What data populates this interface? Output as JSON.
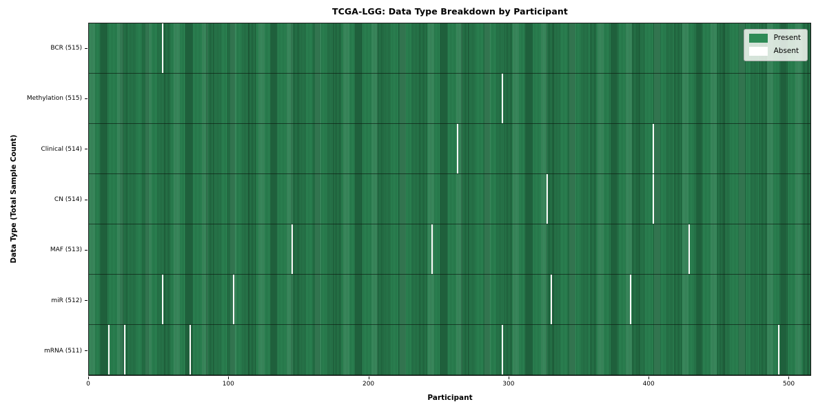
{
  "chart_data": {
    "type": "heatmap",
    "title": "TCGA-LGG: Data Type Breakdown by Participant",
    "xlabel": "Participant",
    "ylabel": "Data Type (Total Sample Count)",
    "x_ticks": [
      0,
      100,
      200,
      300,
      400,
      500
    ],
    "x_range": [
      0,
      516
    ],
    "total_participants": 516,
    "grid": false,
    "legend_position": "upper right",
    "colors": {
      "present": "#2e8b57",
      "present_edge": "#16482c",
      "absent": "#fcfcfa",
      "legend_bg": "#f0f0ee",
      "legend_border": "#a8a8a8"
    },
    "legend_items": [
      {
        "label": "Present",
        "swatch_color": "#2e8b57"
      },
      {
        "label": "Absent",
        "swatch_color": "#ffffff"
      }
    ],
    "rows": [
      {
        "id": "bcr",
        "label": "BCR (515)",
        "data_type": "BCR",
        "present_count": 515,
        "absent_participants": [
          52
        ]
      },
      {
        "id": "methylation",
        "label": "Methylation (515)",
        "data_type": "Methylation",
        "present_count": 515,
        "absent_participants": [
          295
        ]
      },
      {
        "id": "clinical",
        "label": "Clinical (514)",
        "data_type": "Clinical",
        "present_count": 514,
        "absent_participants": [
          263,
          403
        ]
      },
      {
        "id": "cn",
        "label": "CN (514)",
        "data_type": "CN",
        "present_count": 514,
        "absent_participants": [
          327,
          403
        ]
      },
      {
        "id": "maf",
        "label": "MAF (513)",
        "data_type": "MAF",
        "present_count": 513,
        "absent_participants": [
          145,
          245,
          429
        ]
      },
      {
        "id": "mir",
        "label": "miR (512)",
        "data_type": "miR",
        "present_count": 512,
        "absent_participants": [
          52,
          103,
          330,
          387
        ]
      },
      {
        "id": "mrna",
        "label": "mRNA (511)",
        "data_type": "mRNA",
        "present_count": 511,
        "absent_participants": [
          14,
          25,
          72,
          295,
          493
        ]
      }
    ]
  }
}
